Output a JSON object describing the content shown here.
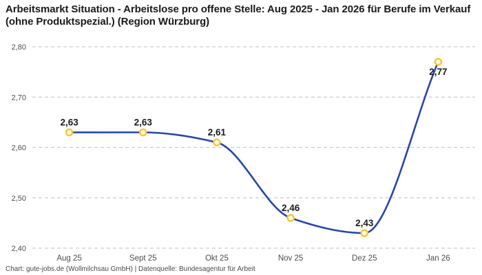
{
  "header": {
    "title": "Arbeitsmarkt Situation - Arbeitslose pro offene Stelle: Aug 2025 - Jan 2026 für Berufe im Verkauf (ohne Produktspezial.) (Region Würzburg)"
  },
  "chart_data": {
    "type": "line",
    "title": "Arbeitsmarkt Situation - Arbeitslose pro offene Stelle: Aug 2025 - Jan 2026 für Berufe im Verkauf (ohne Produktspezial.) (Region Würzburg)",
    "categories": [
      "Aug 25",
      "Sept 25",
      "Okt 25",
      "Nov 25",
      "Dez 25",
      "Jan 26"
    ],
    "values": [
      2.63,
      2.63,
      2.61,
      2.46,
      2.43,
      2.77
    ],
    "value_labels": [
      "2,63",
      "2,63",
      "2,61",
      "2,46",
      "2,43",
      "2,77"
    ],
    "label_positions": [
      "above",
      "above",
      "above",
      "above",
      "above",
      "below"
    ],
    "y_ticks": [
      {
        "value": 2.4,
        "label": "2,40"
      },
      {
        "value": 2.5,
        "label": "2,50"
      },
      {
        "value": 2.6,
        "label": "2,60"
      },
      {
        "value": 2.7,
        "label": "2,70"
      },
      {
        "value": 2.8,
        "label": "2,80"
      }
    ],
    "ylim": [
      2.4,
      2.8
    ],
    "xlabel": "",
    "ylabel": "",
    "grid": "horizontal-dashed",
    "legend": "none",
    "curve": "monotone",
    "colors": {
      "line": "#2647ab",
      "marker_ring": "#fdc42f",
      "marker_fill": "#ffffff",
      "grid": "#cccccc",
      "axis_text": "#4d4d4d",
      "value_label_text": "#1a1a1a"
    }
  },
  "footer": {
    "credit": "Chart: gute-jobs.de (Wollmilchsau GmbH) | Datenquelle: Bundesagentur für Arbeit"
  }
}
